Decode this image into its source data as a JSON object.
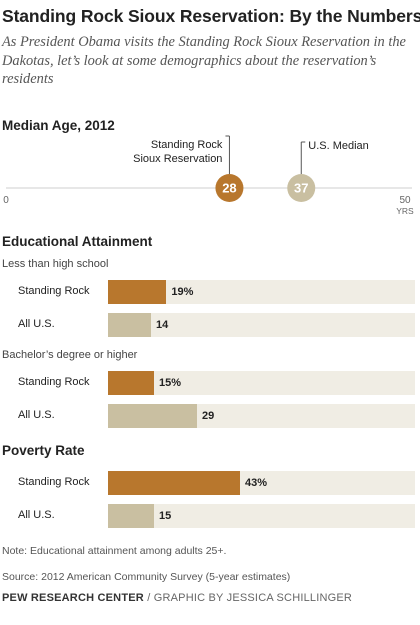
{
  "header": {
    "title": "Standing Rock Sioux Reservation: By the Numbers",
    "subtitle": "As President Obama visits the Standing Rock Sioux Reservation in the Dakotas, let’s look at some demographics about the reservation’s residents"
  },
  "colors": {
    "standing_rock": "#b8772d",
    "all_us": "#c9bfa1",
    "track": "#f0ede4"
  },
  "median_age": {
    "title": "Median Age, 2012",
    "axis_min_label": "0",
    "axis_max_label": "50",
    "axis_unit": "YRS",
    "axis_min": 0,
    "axis_max": 50,
    "points": [
      {
        "label_line1": "Standing Rock",
        "label_line2": "Sioux Reservation",
        "value": 28,
        "display": "28"
      },
      {
        "label_line1": "U.S. Median",
        "label_line2": "",
        "value": 37,
        "display": "37"
      }
    ]
  },
  "education": {
    "title": "Educational Attainment",
    "groups": [
      {
        "title": "Less than high school",
        "rows": [
          {
            "label": "Standing Rock",
            "value": 19,
            "display": "19%"
          },
          {
            "label": "All U.S.",
            "value": 14,
            "display": "14"
          }
        ]
      },
      {
        "title": "Bachelor’s degree or higher",
        "rows": [
          {
            "label": "Standing Rock",
            "value": 15,
            "display": "15%"
          },
          {
            "label": "All U.S.",
            "value": 29,
            "display": "29"
          }
        ]
      }
    ]
  },
  "poverty": {
    "title": "Poverty Rate",
    "rows": [
      {
        "label": "Standing Rock",
        "value": 43,
        "display": "43%"
      },
      {
        "label": "All U.S.",
        "value": 15,
        "display": "15"
      }
    ]
  },
  "chart_data": [
    {
      "type": "scatter",
      "title": "Median Age, 2012",
      "xlim": [
        0,
        50
      ],
      "xlabel": "YRS",
      "series": [
        {
          "name": "Standing Rock Sioux Reservation",
          "values": [
            28
          ]
        },
        {
          "name": "U.S. Median",
          "values": [
            37
          ]
        }
      ]
    },
    {
      "type": "bar",
      "title": "Educational Attainment",
      "categories": [
        "Less than high school",
        "Bachelor’s degree or higher"
      ],
      "series": [
        {
          "name": "Standing Rock",
          "values": [
            19,
            15
          ]
        },
        {
          "name": "All U.S.",
          "values": [
            14,
            29
          ]
        }
      ],
      "ylim": [
        0,
        100
      ]
    },
    {
      "type": "bar",
      "title": "Poverty Rate",
      "categories": [
        "Poverty Rate"
      ],
      "series": [
        {
          "name": "Standing Rock",
          "values": [
            43
          ]
        },
        {
          "name": "All U.S.",
          "values": [
            15
          ]
        }
      ],
      "ylim": [
        0,
        100
      ]
    }
  ],
  "notes": {
    "note": "Note: Educational attainment among adults 25+.",
    "source": "Source: 2012 American Community Survey (5-year estimates)"
  },
  "footer": {
    "org": "PEW RESEARCH CENTER",
    "separator": " / ",
    "credit": "GRAPHIC BY JESSICA SCHILLINGER"
  }
}
